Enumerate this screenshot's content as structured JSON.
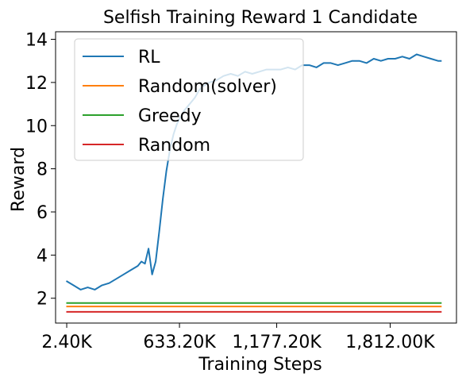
{
  "chart_data": {
    "type": "line",
    "title": "Selfish Training Reward 1 Candidate",
    "xlabel": "Training Steps",
    "ylabel": "Reward",
    "xlim": [
      -60,
      2183
    ],
    "ylim": [
      0.85,
      14.35
    ],
    "xticks": [
      {
        "value": 2.4,
        "label": "2.40K"
      },
      {
        "value": 633.2,
        "label": "633.20K"
      },
      {
        "value": 1177.2,
        "label": "1,177.20K"
      },
      {
        "value": 1812.0,
        "label": "1,812.00K"
      }
    ],
    "yticks": [
      {
        "value": 2,
        "label": "2"
      },
      {
        "value": 4,
        "label": "4"
      },
      {
        "value": 6,
        "label": "6"
      },
      {
        "value": 8,
        "label": "8"
      },
      {
        "value": 10,
        "label": "10"
      },
      {
        "value": 12,
        "label": "12"
      },
      {
        "value": 14,
        "label": "14"
      }
    ],
    "grid": false,
    "legend_position": "top-left",
    "series": [
      {
        "name": "RL",
        "color": "#1f77b4",
        "x": [
          0,
          40,
          80,
          120,
          160,
          200,
          240,
          280,
          320,
          360,
          400,
          420,
          440,
          460,
          480,
          500,
          520,
          540,
          560,
          580,
          600,
          620,
          640,
          660,
          680,
          700,
          720,
          740,
          760,
          780,
          800,
          840,
          880,
          920,
          960,
          1000,
          1040,
          1080,
          1120,
          1160,
          1200,
          1240,
          1280,
          1320,
          1360,
          1400,
          1440,
          1480,
          1520,
          1560,
          1600,
          1640,
          1680,
          1720,
          1760,
          1800,
          1840,
          1880,
          1920,
          1960,
          2000,
          2040,
          2080,
          2100
        ],
        "y": [
          2.8,
          2.6,
          2.4,
          2.5,
          2.4,
          2.6,
          2.7,
          2.9,
          3.1,
          3.3,
          3.5,
          3.7,
          3.6,
          4.3,
          3.1,
          3.7,
          5.1,
          6.6,
          7.9,
          8.9,
          9.6,
          10.1,
          10.4,
          10.7,
          10.9,
          11.1,
          11.3,
          11.6,
          11.8,
          11.9,
          12.0,
          12.1,
          12.3,
          12.4,
          12.3,
          12.5,
          12.4,
          12.5,
          12.6,
          12.6,
          12.6,
          12.7,
          12.6,
          12.8,
          12.8,
          12.7,
          12.9,
          12.9,
          12.8,
          12.9,
          13.0,
          13.0,
          12.9,
          13.1,
          13.0,
          13.1,
          13.1,
          13.2,
          13.1,
          13.3,
          13.2,
          13.1,
          13.0,
          13.0
        ]
      },
      {
        "name": "Random(solver)",
        "color": "#ff7f0e",
        "x": [
          0,
          2100
        ],
        "y": [
          1.62,
          1.62
        ]
      },
      {
        "name": "Greedy",
        "color": "#2ca02c",
        "x": [
          0,
          2100
        ],
        "y": [
          1.78,
          1.78
        ]
      },
      {
        "name": "Random",
        "color": "#d62728",
        "x": [
          0,
          2100
        ],
        "y": [
          1.37,
          1.37
        ]
      }
    ]
  }
}
